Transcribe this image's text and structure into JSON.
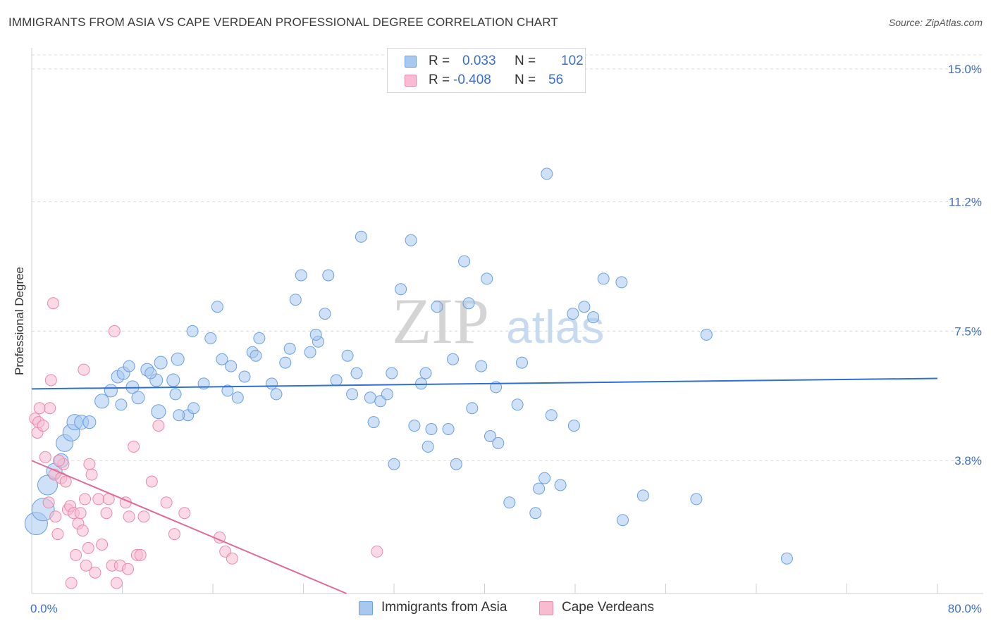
{
  "title": "IMMIGRANTS FROM ASIA VS CAPE VERDEAN PROFESSIONAL DEGREE CORRELATION CHART",
  "source": "Source: ZipAtlas.com",
  "watermark": {
    "zip": "ZIP",
    "atlas": "atlas"
  },
  "legend": {
    "rows": [
      {
        "r_label": "R =",
        "r_value": "0.033",
        "n_label": "N =",
        "n_value": "102",
        "color": "#a8c8f0",
        "border": "#6a9fe0"
      },
      {
        "r_label": "R =",
        "r_value": "-0.408",
        "n_label": "N =",
        "n_value": "56",
        "color": "#f8bcd0",
        "border": "#e88aa8"
      }
    ]
  },
  "bottom_legend": [
    {
      "label": "Immigrants from Asia",
      "color": "#a8c8f0",
      "border": "#6a9fe0"
    },
    {
      "label": "Cape Verdeans",
      "color": "#f8bcd0",
      "border": "#e88aa8"
    }
  ],
  "chart_data": {
    "type": "scatter",
    "ylabel": "Professional Degree",
    "x_tick_labels": [
      "0.0%",
      "80.0%"
    ],
    "y_tick_labels": [
      "3.8%",
      "7.5%",
      "11.2%",
      "15.0%"
    ],
    "y_ticks": [
      3.8,
      7.5,
      11.2,
      15.0
    ],
    "xlim": [
      0,
      80
    ],
    "ylim": [
      0,
      15.4
    ],
    "grid": true,
    "series": [
      {
        "name": "Immigrants from Asia",
        "color": "#a8c8f0",
        "stroke": "#6a9fe0",
        "line_color": "#2f6fd0",
        "trend": {
          "x": [
            0,
            80
          ],
          "y": [
            5.85,
            6.15
          ]
        },
        "points": [
          [
            0.4,
            2.0,
            16
          ],
          [
            1.0,
            2.4,
            16
          ],
          [
            1.4,
            3.1,
            14
          ],
          [
            2.0,
            3.5,
            11
          ],
          [
            2.6,
            3.8,
            10
          ],
          [
            2.9,
            4.3,
            12
          ],
          [
            3.5,
            4.6,
            12
          ],
          [
            3.8,
            4.9,
            11
          ],
          [
            4.4,
            4.9,
            10
          ],
          [
            5.1,
            4.9,
            9
          ],
          [
            6.2,
            5.5,
            10
          ],
          [
            7.0,
            5.8,
            9
          ],
          [
            7.6,
            6.2,
            9
          ],
          [
            8.1,
            6.3,
            9
          ],
          [
            7.9,
            5.4,
            8
          ],
          [
            8.6,
            6.5,
            8
          ],
          [
            8.9,
            5.9,
            9
          ],
          [
            9.4,
            5.6,
            9
          ],
          [
            10.2,
            6.4,
            9
          ],
          [
            11.2,
            5.2,
            10
          ],
          [
            11.0,
            6.1,
            9
          ],
          [
            11.4,
            6.6,
            9
          ],
          [
            12.5,
            6.1,
            9
          ],
          [
            12.9,
            6.7,
            9
          ],
          [
            13.8,
            5.1,
            8
          ],
          [
            14.3,
            5.3,
            8
          ],
          [
            12.7,
            5.7,
            8
          ],
          [
            14.2,
            7.5,
            8
          ],
          [
            15.2,
            6.0,
            8
          ],
          [
            15.8,
            7.3,
            8
          ],
          [
            16.4,
            8.2,
            8
          ],
          [
            17.6,
            6.5,
            8
          ],
          [
            17.3,
            5.8,
            8
          ],
          [
            18.2,
            5.6,
            8
          ],
          [
            18.8,
            6.2,
            8
          ],
          [
            19.5,
            6.9,
            8
          ],
          [
            20.1,
            7.3,
            8
          ],
          [
            19.8,
            6.8,
            8
          ],
          [
            21.2,
            6.0,
            8
          ],
          [
            21.6,
            5.7,
            8
          ],
          [
            22.4,
            6.6,
            8
          ],
          [
            23.3,
            8.4,
            8
          ],
          [
            22.8,
            7.0,
            8
          ],
          [
            23.8,
            9.1,
            8
          ],
          [
            24.6,
            6.9,
            8
          ],
          [
            25.3,
            7.2,
            8
          ],
          [
            25.1,
            7.4,
            8
          ],
          [
            25.9,
            8.0,
            8
          ],
          [
            26.2,
            9.1,
            8
          ],
          [
            26.9,
            6.1,
            8
          ],
          [
            27.9,
            6.8,
            8
          ],
          [
            28.3,
            5.7,
            8
          ],
          [
            28.7,
            6.3,
            8
          ],
          [
            29.1,
            10.2,
            8
          ],
          [
            29.9,
            5.6,
            8
          ],
          [
            30.2,
            4.9,
            8
          ],
          [
            30.8,
            5.5,
            8
          ],
          [
            31.4,
            5.7,
            8
          ],
          [
            31.8,
            6.3,
            8
          ],
          [
            32.0,
            3.7,
            8
          ],
          [
            32.6,
            8.7,
            8
          ],
          [
            33.5,
            10.1,
            8
          ],
          [
            33.8,
            4.8,
            8
          ],
          [
            34.4,
            6.0,
            8
          ],
          [
            34.8,
            6.3,
            8
          ],
          [
            35.0,
            4.2,
            8
          ],
          [
            35.3,
            4.7,
            8
          ],
          [
            35.8,
            8.2,
            8
          ],
          [
            36.8,
            4.7,
            8
          ],
          [
            37.2,
            6.7,
            8
          ],
          [
            37.5,
            3.7,
            8
          ],
          [
            38.2,
            9.5,
            8
          ],
          [
            38.6,
            8.3,
            8
          ],
          [
            38.9,
            5.3,
            8
          ],
          [
            39.7,
            6.5,
            8
          ],
          [
            40.2,
            9.0,
            8
          ],
          [
            40.5,
            4.5,
            8
          ],
          [
            41.0,
            5.9,
            8
          ],
          [
            41.2,
            4.3,
            8
          ],
          [
            42.2,
            2.6,
            8
          ],
          [
            42.9,
            5.4,
            8
          ],
          [
            43.3,
            6.6,
            8
          ],
          [
            44.5,
            2.3,
            8
          ],
          [
            44.8,
            3.0,
            8
          ],
          [
            45.3,
            3.3,
            8
          ],
          [
            45.5,
            12.0,
            8
          ],
          [
            45.9,
            5.1,
            8
          ],
          [
            46.7,
            3.1,
            8
          ],
          [
            47.8,
            8.0,
            8
          ],
          [
            47.9,
            4.8,
            8
          ],
          [
            48.8,
            8.2,
            8
          ],
          [
            49.6,
            7.9,
            8
          ],
          [
            50.5,
            9.0,
            8
          ],
          [
            52.1,
            8.9,
            8
          ],
          [
            52.2,
            2.1,
            8
          ],
          [
            54.0,
            2.8,
            8
          ],
          [
            58.7,
            2.7,
            8
          ],
          [
            59.6,
            7.4,
            8
          ],
          [
            66.7,
            1.0,
            8
          ],
          [
            13.0,
            5.1,
            8
          ],
          [
            10.5,
            6.3,
            8
          ],
          [
            16.8,
            6.7,
            8
          ]
        ]
      },
      {
        "name": "Cape Verdeans",
        "color": "#f8bcd0",
        "stroke": "#e88aa8",
        "line_color": "#e06a98",
        "trend": {
          "x": [
            0,
            27.8
          ],
          "y": [
            3.8,
            0.0
          ]
        },
        "points": [
          [
            0.3,
            5.0,
            8
          ],
          [
            0.5,
            4.6,
            8
          ],
          [
            0.6,
            4.9,
            8
          ],
          [
            0.7,
            5.3,
            8
          ],
          [
            1.0,
            4.8,
            8
          ],
          [
            1.2,
            3.9,
            8
          ],
          [
            1.5,
            2.6,
            8
          ],
          [
            1.6,
            5.3,
            8
          ],
          [
            1.7,
            6.1,
            8
          ],
          [
            1.9,
            8.3,
            8
          ],
          [
            2.0,
            3.4,
            8
          ],
          [
            2.1,
            2.2,
            8
          ],
          [
            2.3,
            1.7,
            8
          ],
          [
            2.6,
            3.3,
            8
          ],
          [
            2.8,
            3.7,
            8
          ],
          [
            3.0,
            3.2,
            8
          ],
          [
            3.2,
            2.4,
            8
          ],
          [
            3.4,
            2.5,
            8
          ],
          [
            3.5,
            0.3,
            8
          ],
          [
            3.7,
            2.3,
            8
          ],
          [
            3.9,
            1.1,
            8
          ],
          [
            4.1,
            2.0,
            8
          ],
          [
            4.3,
            2.3,
            8
          ],
          [
            4.5,
            1.8,
            8
          ],
          [
            4.6,
            6.4,
            8
          ],
          [
            4.7,
            2.7,
            8
          ],
          [
            4.8,
            0.8,
            8
          ],
          [
            5.0,
            1.3,
            8
          ],
          [
            5.1,
            3.7,
            8
          ],
          [
            5.3,
            3.4,
            8
          ],
          [
            5.6,
            0.6,
            8
          ],
          [
            5.9,
            2.7,
            8
          ],
          [
            6.2,
            1.4,
            8
          ],
          [
            6.6,
            2.3,
            8
          ],
          [
            7.1,
            0.8,
            8
          ],
          [
            7.3,
            7.5,
            8
          ],
          [
            7.5,
            0.3,
            8
          ],
          [
            7.8,
            0.8,
            8
          ],
          [
            8.3,
            2.6,
            8
          ],
          [
            8.6,
            2.2,
            8
          ],
          [
            9.0,
            4.2,
            8
          ],
          [
            9.3,
            1.1,
            8
          ],
          [
            9.6,
            1.1,
            8
          ],
          [
            9.9,
            2.2,
            8
          ],
          [
            10.6,
            3.2,
            8
          ],
          [
            11.2,
            4.8,
            8
          ],
          [
            11.9,
            2.6,
            8
          ],
          [
            12.6,
            1.7,
            8
          ],
          [
            13.5,
            2.3,
            8
          ],
          [
            16.6,
            1.6,
            8
          ],
          [
            17.1,
            1.2,
            8
          ],
          [
            17.7,
            1.0,
            8
          ],
          [
            30.5,
            1.2,
            8
          ],
          [
            8.5,
            0.7,
            8
          ],
          [
            6.8,
            2.7,
            8
          ],
          [
            2.4,
            3.8,
            8
          ]
        ]
      }
    ]
  }
}
